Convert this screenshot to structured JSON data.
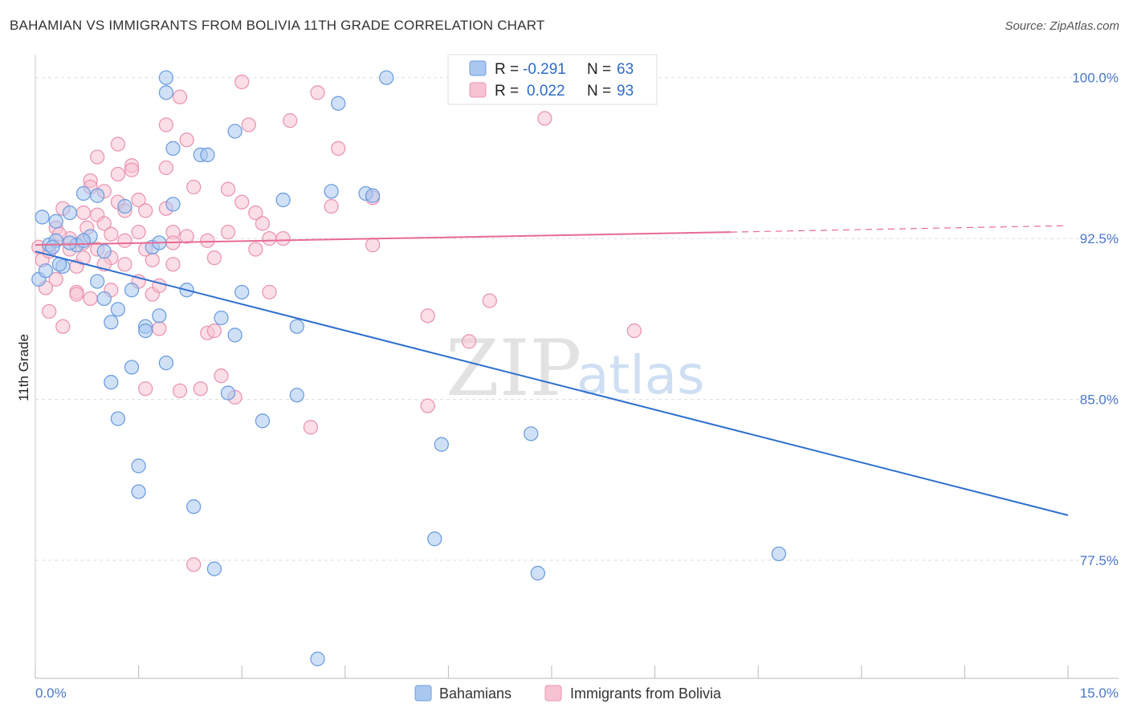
{
  "title": "BAHAMIAN VS IMMIGRANTS FROM BOLIVIA 11TH GRADE CORRELATION CHART",
  "source": "Source: ZipAtlas.com",
  "watermark": {
    "zip": "ZIP",
    "atlas": "atlas"
  },
  "colors": {
    "blue_fill": "#aac8f0",
    "blue_stroke": "#6f9ee0",
    "blue_line": "#2d6fd0",
    "pink_fill": "#f7c2d2",
    "pink_stroke": "#ea97b3",
    "pink_line": "#e86b92",
    "tick_label": "#4a78c8",
    "grid": "#dddddd"
  },
  "legend": {
    "rows": [
      {
        "r_label": "R =",
        "r_value": "-0.291",
        "n_label": "N =",
        "n_value": "63"
      },
      {
        "r_label": "R =",
        "r_value": "0.022",
        "n_label": "N =",
        "n_value": "93"
      }
    ]
  },
  "bottom_legend": [
    "Bahamians",
    "Immigrants from Bolivia"
  ],
  "chart_data": {
    "type": "scatter",
    "title": "BAHAMIAN VS IMMIGRANTS FROM BOLIVIA 11TH GRADE CORRELATION CHART",
    "xlabel": "",
    "ylabel": "11th Grade",
    "xlim": [
      0,
      15
    ],
    "ylim": [
      72.0,
      101.0
    ],
    "x_tick_labels": [
      "0.0%",
      "15.0%"
    ],
    "y_ticks": [
      100.0,
      92.5,
      85.0,
      77.5
    ],
    "y_tick_labels": [
      "100.0%",
      "92.5%",
      "85.0%",
      "77.5%"
    ],
    "grid": true,
    "legend_position": "top-center",
    "series": [
      {
        "name": "Bahamians",
        "r": -0.291,
        "n": 63,
        "trend": {
          "x": [
            0,
            15
          ],
          "y": [
            91.9,
            79.6
          ]
        },
        "points": [
          [
            0.1,
            93.5
          ],
          [
            0.2,
            92.2
          ],
          [
            0.3,
            93.3
          ],
          [
            0.4,
            91.2
          ],
          [
            0.5,
            93.7
          ],
          [
            0.6,
            92.2
          ],
          [
            0.3,
            92.4
          ],
          [
            0.5,
            92.3
          ],
          [
            0.7,
            94.6
          ],
          [
            0.8,
            92.6
          ],
          [
            0.9,
            90.5
          ],
          [
            1.0,
            89.7
          ],
          [
            1.1,
            88.6
          ],
          [
            1.0,
            91.9
          ],
          [
            0.9,
            94.5
          ],
          [
            0.7,
            92.4
          ],
          [
            1.2,
            89.2
          ],
          [
            1.1,
            85.8
          ],
          [
            1.2,
            84.1
          ],
          [
            1.3,
            94.0
          ],
          [
            1.4,
            90.1
          ],
          [
            1.4,
            86.5
          ],
          [
            1.5,
            81.9
          ],
          [
            1.5,
            80.7
          ],
          [
            1.6,
            88.4
          ],
          [
            1.6,
            88.2
          ],
          [
            1.7,
            92.1
          ],
          [
            1.8,
            92.3
          ],
          [
            1.8,
            88.9
          ],
          [
            1.9,
            86.7
          ],
          [
            1.9,
            99.3
          ],
          [
            1.9,
            100.0
          ],
          [
            2.0,
            96.7
          ],
          [
            2.0,
            94.1
          ],
          [
            2.2,
            90.1
          ],
          [
            2.3,
            80.0
          ],
          [
            2.4,
            96.4
          ],
          [
            2.5,
            96.4
          ],
          [
            2.6,
            77.1
          ],
          [
            2.7,
            88.8
          ],
          [
            2.8,
            85.3
          ],
          [
            2.9,
            97.5
          ],
          [
            2.9,
            88.0
          ],
          [
            3.0,
            90.0
          ],
          [
            3.3,
            84.0
          ],
          [
            3.6,
            94.3
          ],
          [
            3.8,
            85.2
          ],
          [
            3.8,
            88.4
          ],
          [
            4.1,
            72.9
          ],
          [
            4.3,
            94.7
          ],
          [
            4.4,
            98.8
          ],
          [
            4.8,
            94.6
          ],
          [
            4.9,
            94.5
          ],
          [
            5.1,
            100.0
          ],
          [
            5.8,
            78.5
          ],
          [
            5.9,
            82.9
          ],
          [
            7.2,
            83.4
          ],
          [
            7.3,
            76.9
          ],
          [
            10.8,
            77.8
          ],
          [
            0.05,
            90.6
          ],
          [
            0.15,
            91.0
          ],
          [
            0.25,
            92.1
          ],
          [
            0.35,
            91.3
          ]
        ]
      },
      {
        "name": "Immigrants from Bolivia",
        "r": 0.022,
        "n": 93,
        "trend": {
          "x": [
            0,
            10.1
          ],
          "y": [
            92.2,
            92.8
          ]
        },
        "trend_dashed": {
          "x": [
            10.1,
            15
          ],
          "y": [
            92.8,
            93.1
          ]
        },
        "points": [
          [
            0.1,
            91.5
          ],
          [
            0.2,
            91.9
          ],
          [
            0.2,
            89.1
          ],
          [
            0.3,
            90.6
          ],
          [
            0.4,
            88.4
          ],
          [
            0.4,
            93.9
          ],
          [
            0.5,
            92.0
          ],
          [
            0.6,
            90.0
          ],
          [
            0.6,
            89.9
          ],
          [
            0.6,
            91.2
          ],
          [
            0.7,
            93.7
          ],
          [
            0.7,
            92.3
          ],
          [
            0.8,
            95.2
          ],
          [
            0.8,
            94.9
          ],
          [
            0.8,
            89.7
          ],
          [
            0.9,
            96.3
          ],
          [
            0.9,
            93.6
          ],
          [
            1.0,
            94.7
          ],
          [
            1.0,
            93.2
          ],
          [
            1.1,
            92.7
          ],
          [
            1.1,
            91.6
          ],
          [
            1.1,
            90.1
          ],
          [
            1.2,
            96.9
          ],
          [
            1.2,
            95.5
          ],
          [
            1.2,
            94.2
          ],
          [
            1.3,
            93.8
          ],
          [
            1.3,
            91.3
          ],
          [
            1.4,
            95.9
          ],
          [
            1.4,
            95.7
          ],
          [
            1.5,
            94.3
          ],
          [
            1.5,
            92.8
          ],
          [
            1.5,
            90.5
          ],
          [
            1.6,
            85.5
          ],
          [
            1.6,
            93.8
          ],
          [
            1.7,
            91.5
          ],
          [
            1.7,
            89.9
          ],
          [
            1.8,
            90.3
          ],
          [
            1.8,
            88.3
          ],
          [
            1.9,
            97.8
          ],
          [
            1.9,
            95.8
          ],
          [
            1.9,
            93.9
          ],
          [
            2.0,
            92.8
          ],
          [
            2.0,
            91.3
          ],
          [
            2.1,
            85.4
          ],
          [
            2.1,
            99.1
          ],
          [
            2.2,
            97.1
          ],
          [
            2.2,
            92.6
          ],
          [
            2.3,
            94.9
          ],
          [
            2.3,
            77.3
          ],
          [
            2.4,
            85.5
          ],
          [
            2.5,
            88.1
          ],
          [
            2.6,
            91.6
          ],
          [
            2.6,
            88.2
          ],
          [
            2.7,
            86.1
          ],
          [
            2.8,
            94.8
          ],
          [
            2.8,
            92.8
          ],
          [
            2.9,
            85.1
          ],
          [
            3.0,
            99.8
          ],
          [
            3.0,
            94.2
          ],
          [
            3.1,
            97.8
          ],
          [
            3.2,
            93.7
          ],
          [
            3.2,
            92.0
          ],
          [
            3.3,
            93.2
          ],
          [
            3.4,
            90.0
          ],
          [
            3.6,
            92.5
          ],
          [
            3.7,
            98.0
          ],
          [
            4.0,
            83.7
          ],
          [
            4.1,
            99.3
          ],
          [
            4.3,
            94.0
          ],
          [
            4.4,
            96.7
          ],
          [
            4.9,
            92.2
          ],
          [
            4.9,
            94.4
          ],
          [
            5.7,
            84.7
          ],
          [
            5.7,
            88.9
          ],
          [
            6.3,
            87.7
          ],
          [
            6.6,
            89.6
          ],
          [
            7.4,
            98.1
          ],
          [
            7.5,
            99.1
          ],
          [
            8.7,
            88.2
          ],
          [
            0.05,
            92.1
          ],
          [
            0.15,
            90.2
          ],
          [
            0.3,
            93.0
          ],
          [
            0.5,
            92.5
          ],
          [
            0.7,
            91.6
          ],
          [
            0.9,
            92.0
          ],
          [
            1.0,
            91.3
          ],
          [
            1.3,
            92.4
          ],
          [
            1.6,
            92.0
          ],
          [
            2.0,
            92.3
          ],
          [
            2.5,
            92.4
          ],
          [
            3.4,
            92.5
          ],
          [
            0.35,
            92.7
          ],
          [
            0.75,
            93.0
          ]
        ]
      }
    ]
  }
}
